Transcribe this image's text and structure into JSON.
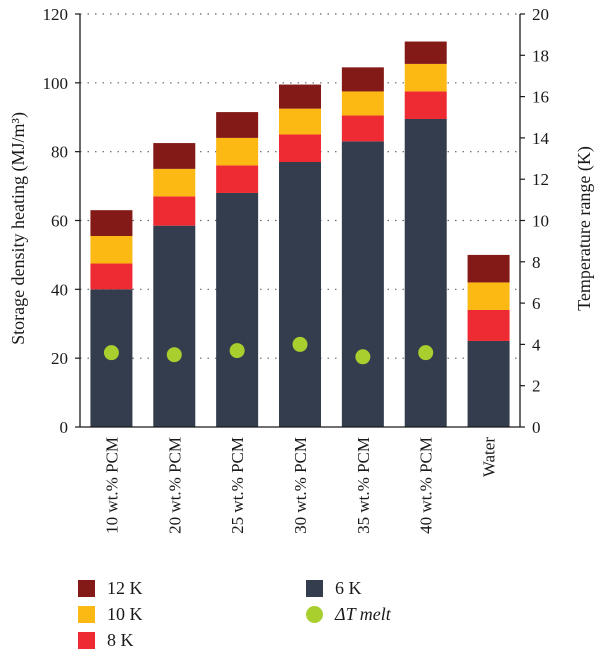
{
  "chart_data": {
    "type": "bar",
    "stacked": true,
    "categories": [
      "10 wt.% PCM",
      "20 wt.% PCM",
      "25 wt.% PCM",
      "30 wt.% PCM",
      "35 wt.% PCM",
      "40 wt.% PCM",
      "Water"
    ],
    "series": [
      {
        "name": "6 K",
        "color": "#333d4e",
        "values": [
          40,
          58.5,
          68,
          77,
          83,
          89.5,
          25
        ]
      },
      {
        "name": "8 K",
        "color": "#ee2a33",
        "values": [
          7.5,
          8.5,
          8,
          8,
          7.5,
          8,
          9
        ]
      },
      {
        "name": "10 K",
        "color": "#fdb913",
        "values": [
          8,
          8,
          8,
          7.5,
          7,
          8,
          8
        ]
      },
      {
        "name": "12 K",
        "color": "#841a17",
        "values": [
          7.5,
          7.5,
          7.5,
          7,
          7,
          6.5,
          8
        ]
      }
    ],
    "markers": {
      "name": "ΔT melt",
      "color": "#a8cf2e",
      "axis": "right",
      "values": [
        3.6,
        3.5,
        3.7,
        4.0,
        3.4,
        3.6,
        null
      ]
    },
    "ylabel": "Storage density heating (MJ/m³)",
    "ylim": [
      0,
      120
    ],
    "yticks": [
      "0",
      "20",
      "40",
      "60",
      "80",
      "100",
      "120"
    ],
    "y2label": "Temperature range (K)",
    "y2lim": [
      0,
      20
    ],
    "y2ticks": [
      "0",
      "2",
      "4",
      "6",
      "8",
      "10",
      "12",
      "14",
      "16",
      "18",
      "20"
    ],
    "grid": "horizontal dotted",
    "legend_placement": "bottom"
  }
}
